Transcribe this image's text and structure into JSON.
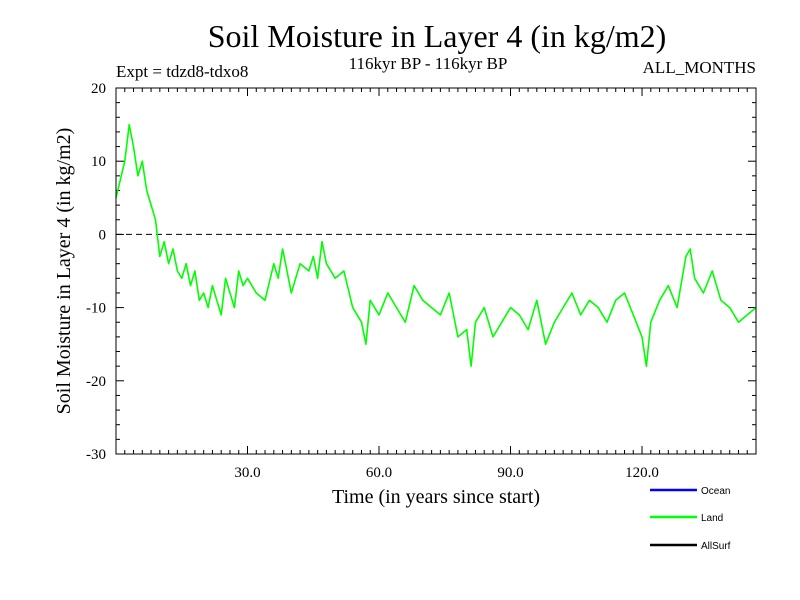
{
  "chart_data": {
    "type": "line",
    "title": "Soil Moisture in Layer 4 (in kg/m2)",
    "subtitle_left": "Expt = tdzd8-tdxo8",
    "subtitle_center": "116kyr BP - 116kyr BP",
    "subtitle_right": "ALL_MONTHS",
    "xlabel": "Time (in years since start)",
    "ylabel": "Soil Moisture in Layer 4 (in kg/m2)",
    "xlim": [
      0,
      146
    ],
    "ylim": [
      -30,
      20
    ],
    "xticks": [
      30,
      60,
      90,
      120
    ],
    "xtick_labels": [
      "30.0",
      "60.0",
      "90.0",
      "120.0"
    ],
    "yticks": [
      -30,
      -20,
      -10,
      0,
      10,
      20
    ],
    "ytick_labels": [
      "-30",
      "-20",
      "-10",
      "0",
      "10",
      "20"
    ],
    "reference_line": 0,
    "legend": [
      {
        "name": "Ocean",
        "color": "#0000ff"
      },
      {
        "name": "Land",
        "color": "#00ff00"
      },
      {
        "name": "AllSurf",
        "color": "#000000"
      }
    ],
    "series": [
      {
        "name": "Land",
        "color": "#00ff00",
        "x": [
          0,
          2,
          3,
          4,
          5,
          6,
          7,
          8,
          9,
          10,
          11,
          12,
          13,
          14,
          15,
          16,
          17,
          18,
          19,
          20,
          21,
          22,
          23,
          24,
          25,
          26,
          27,
          28,
          29,
          30,
          32,
          34,
          36,
          37,
          38,
          39,
          40,
          42,
          44,
          45,
          46,
          47,
          48,
          50,
          52,
          54,
          56,
          57,
          58,
          60,
          62,
          64,
          66,
          68,
          70,
          72,
          74,
          76,
          78,
          80,
          81,
          82,
          84,
          86,
          88,
          90,
          92,
          94,
          96,
          98,
          100,
          102,
          104,
          106,
          108,
          110,
          112,
          114,
          116,
          118,
          120,
          121,
          122,
          124,
          126,
          128,
          130,
          131,
          132,
          134,
          136,
          138,
          140,
          142,
          144,
          146
        ],
        "y": [
          5,
          10,
          15,
          12,
          8,
          10,
          6,
          4,
          2,
          -3,
          -1,
          -4,
          -2,
          -5,
          -6,
          -4,
          -7,
          -5,
          -9,
          -8,
          -10,
          -7,
          -9,
          -11,
          -6,
          -8,
          -10,
          -5,
          -7,
          -6,
          -8,
          -9,
          -4,
          -6,
          -2,
          -5,
          -8,
          -4,
          -5,
          -3,
          -6,
          -1,
          -4,
          -6,
          -5,
          -10,
          -12,
          -15,
          -9,
          -11,
          -8,
          -10,
          -12,
          -7,
          -9,
          -10,
          -11,
          -8,
          -14,
          -13,
          -18,
          -12,
          -10,
          -14,
          -12,
          -10,
          -11,
          -13,
          -9,
          -15,
          -12,
          -10,
          -8,
          -11,
          -9,
          -10,
          -12,
          -9,
          -8,
          -11,
          -14,
          -18,
          -12,
          -9,
          -7,
          -10,
          -3,
          -2,
          -6,
          -8,
          -5,
          -9,
          -10,
          -12,
          -11,
          -10
        ]
      },
      {
        "name": "Ocean",
        "color": "#0000ff",
        "x": [],
        "y": []
      },
      {
        "name": "AllSurf",
        "color": "#000000",
        "x": [],
        "y": []
      }
    ]
  }
}
